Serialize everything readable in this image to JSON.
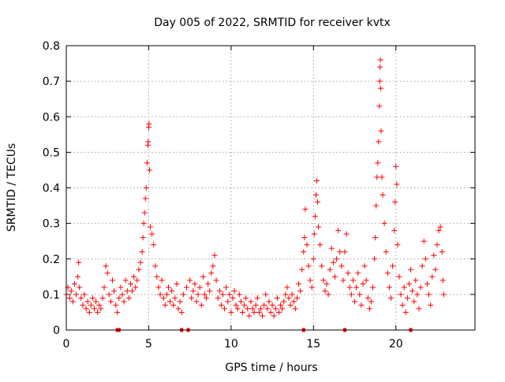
{
  "chart_data": {
    "type": "scatter",
    "title": "Day 005 of 2022, SRMTID for receiver kvtx",
    "xlabel": "GPS time / hours",
    "ylabel": "SRMTID / TECUs",
    "xlim": [
      0,
      24.8
    ],
    "ylim": [
      0,
      0.8
    ],
    "xticks": [
      0,
      5,
      10,
      15,
      20
    ],
    "xtick_labels": [
      "0",
      "5",
      "10",
      "15",
      "20"
    ],
    "yticks": [
      0,
      0.1,
      0.2,
      0.3,
      0.4,
      0.5,
      0.6,
      0.7,
      0.8
    ],
    "ytick_labels": [
      "0",
      "0.1",
      "0.2",
      "0.3",
      "0.4",
      "0.5",
      "0.6",
      "0.7",
      "0.8"
    ],
    "grid": true,
    "marker": "+",
    "color": "#ff0000",
    "series": [
      {
        "name": "SRMTID",
        "points": [
          [
            0.0,
            0.1
          ],
          [
            0.1,
            0.12
          ],
          [
            0.2,
            0.09
          ],
          [
            0.3,
            0.11
          ],
          [
            0.4,
            0.08
          ],
          [
            0.5,
            0.13
          ],
          [
            0.6,
            0.1
          ],
          [
            0.7,
            0.15
          ],
          [
            0.75,
            0.19
          ],
          [
            0.8,
            0.12
          ],
          [
            0.9,
            0.09
          ],
          [
            1.0,
            0.07
          ],
          [
            1.1,
            0.1
          ],
          [
            1.2,
            0.06
          ],
          [
            1.3,
            0.08
          ],
          [
            1.4,
            0.05
          ],
          [
            1.5,
            0.07
          ],
          [
            1.6,
            0.09
          ],
          [
            1.7,
            0.06
          ],
          [
            1.8,
            0.08
          ],
          [
            1.9,
            0.05
          ],
          [
            2.0,
            0.07
          ],
          [
            2.1,
            0.06
          ],
          [
            2.2,
            0.09
          ],
          [
            2.3,
            0.12
          ],
          [
            2.4,
            0.18
          ],
          [
            2.5,
            0.16
          ],
          [
            2.6,
            0.1
          ],
          [
            2.7,
            0.08
          ],
          [
            2.8,
            0.14
          ],
          [
            2.9,
            0.11
          ],
          [
            3.0,
            0.07
          ],
          [
            3.1,
            0.05
          ],
          [
            3.2,
            0.09
          ],
          [
            3.3,
            0.12
          ],
          [
            3.4,
            0.1
          ],
          [
            3.5,
            0.08
          ],
          [
            3.6,
            0.14
          ],
          [
            3.7,
            0.11
          ],
          [
            3.8,
            0.09
          ],
          [
            3.9,
            0.13
          ],
          [
            4.0,
            0.11
          ],
          [
            4.1,
            0.15
          ],
          [
            4.2,
            0.12
          ],
          [
            4.3,
            0.14
          ],
          [
            4.4,
            0.17
          ],
          [
            4.5,
            0.19
          ],
          [
            4.6,
            0.22
          ],
          [
            4.65,
            0.26
          ],
          [
            4.7,
            0.3
          ],
          [
            4.75,
            0.33
          ],
          [
            4.8,
            0.37
          ],
          [
            4.85,
            0.4
          ],
          [
            4.9,
            0.47
          ],
          [
            4.95,
            0.52
          ],
          [
            4.97,
            0.53
          ],
          [
            5.0,
            0.57
          ],
          [
            5.02,
            0.58
          ],
          [
            5.05,
            0.45
          ],
          [
            5.1,
            0.29
          ],
          [
            5.2,
            0.27
          ],
          [
            5.3,
            0.24
          ],
          [
            5.4,
            0.18
          ],
          [
            5.5,
            0.15
          ],
          [
            5.6,
            0.12
          ],
          [
            5.7,
            0.1
          ],
          [
            5.8,
            0.14
          ],
          [
            5.9,
            0.09
          ],
          [
            6.0,
            0.07
          ],
          [
            6.1,
            0.1
          ],
          [
            6.2,
            0.12
          ],
          [
            6.3,
            0.08
          ],
          [
            6.4,
            0.11
          ],
          [
            6.5,
            0.07
          ],
          [
            6.6,
            0.09
          ],
          [
            6.7,
            0.13
          ],
          [
            6.8,
            0.06
          ],
          [
            6.9,
            0.08
          ],
          [
            7.0,
            0.05
          ],
          [
            7.1,
            0.1
          ],
          [
            7.3,
            0.12
          ],
          [
            7.5,
            0.14
          ],
          [
            7.6,
            0.09
          ],
          [
            7.7,
            0.11
          ],
          [
            7.8,
            0.13
          ],
          [
            7.9,
            0.08
          ],
          [
            8.0,
            0.1
          ],
          [
            8.1,
            0.12
          ],
          [
            8.2,
            0.07
          ],
          [
            8.3,
            0.15
          ],
          [
            8.4,
            0.1
          ],
          [
            8.5,
            0.09
          ],
          [
            8.6,
            0.13
          ],
          [
            8.7,
            0.11
          ],
          [
            8.8,
            0.16
          ],
          [
            8.9,
            0.18
          ],
          [
            9.0,
            0.21
          ],
          [
            9.1,
            0.14
          ],
          [
            9.2,
            0.09
          ],
          [
            9.3,
            0.11
          ],
          [
            9.4,
            0.07
          ],
          [
            9.5,
            0.1
          ],
          [
            9.6,
            0.06
          ],
          [
            9.7,
            0.12
          ],
          [
            9.8,
            0.08
          ],
          [
            9.9,
            0.1
          ],
          [
            10.0,
            0.05
          ],
          [
            10.1,
            0.09
          ],
          [
            10.2,
            0.11
          ],
          [
            10.3,
            0.07
          ],
          [
            10.4,
            0.06
          ],
          [
            10.5,
            0.1
          ],
          [
            10.6,
            0.08
          ],
          [
            10.7,
            0.05
          ],
          [
            10.8,
            0.07
          ],
          [
            10.9,
            0.09
          ],
          [
            11.0,
            0.06
          ],
          [
            11.1,
            0.04
          ],
          [
            11.2,
            0.08
          ],
          [
            11.3,
            0.06
          ],
          [
            11.4,
            0.05
          ],
          [
            11.5,
            0.07
          ],
          [
            11.6,
            0.09
          ],
          [
            11.7,
            0.05
          ],
          [
            11.8,
            0.06
          ],
          [
            11.9,
            0.04
          ],
          [
            12.0,
            0.07
          ],
          [
            12.1,
            0.1
          ],
          [
            12.2,
            0.06
          ],
          [
            12.3,
            0.08
          ],
          [
            12.4,
            0.05
          ],
          [
            12.5,
            0.07
          ],
          [
            12.6,
            0.04
          ],
          [
            12.7,
            0.06
          ],
          [
            12.8,
            0.09
          ],
          [
            12.9,
            0.05
          ],
          [
            13.0,
            0.07
          ],
          [
            13.1,
            0.06
          ],
          [
            13.2,
            0.08
          ],
          [
            13.3,
            0.1
          ],
          [
            13.4,
            0.12
          ],
          [
            13.5,
            0.09
          ],
          [
            13.6,
            0.07
          ],
          [
            13.7,
            0.1
          ],
          [
            13.8,
            0.08
          ],
          [
            13.9,
            0.06
          ],
          [
            14.0,
            0.09
          ],
          [
            14.1,
            0.13
          ],
          [
            14.2,
            0.11
          ],
          [
            14.3,
            0.17
          ],
          [
            14.4,
            0.22
          ],
          [
            14.45,
            0.26
          ],
          [
            14.5,
            0.34
          ],
          [
            14.6,
            0.24
          ],
          [
            14.7,
            0.18
          ],
          [
            14.8,
            0.14
          ],
          [
            14.9,
            0.12
          ],
          [
            15.0,
            0.2
          ],
          [
            15.05,
            0.27
          ],
          [
            15.1,
            0.32
          ],
          [
            15.15,
            0.38
          ],
          [
            15.2,
            0.42
          ],
          [
            15.25,
            0.36
          ],
          [
            15.3,
            0.29
          ],
          [
            15.4,
            0.24
          ],
          [
            15.5,
            0.18
          ],
          [
            15.6,
            0.14
          ],
          [
            15.7,
            0.11
          ],
          [
            15.8,
            0.13
          ],
          [
            15.9,
            0.1
          ],
          [
            16.0,
            0.17
          ],
          [
            16.1,
            0.23
          ],
          [
            16.2,
            0.19
          ],
          [
            16.3,
            0.15
          ],
          [
            16.4,
            0.2
          ],
          [
            16.5,
            0.28
          ],
          [
            16.6,
            0.22
          ],
          [
            16.7,
            0.18
          ],
          [
            16.8,
            0.14
          ],
          [
            16.9,
            0.22
          ],
          [
            17.0,
            0.27
          ],
          [
            17.1,
            0.16
          ],
          [
            17.2,
            0.12
          ],
          [
            17.3,
            0.1
          ],
          [
            17.4,
            0.14
          ],
          [
            17.5,
            0.08
          ],
          [
            17.6,
            0.12
          ],
          [
            17.7,
            0.16
          ],
          [
            17.8,
            0.1
          ],
          [
            17.9,
            0.07
          ],
          [
            18.0,
            0.13
          ],
          [
            18.1,
            0.18
          ],
          [
            18.2,
            0.14
          ],
          [
            18.3,
            0.09
          ],
          [
            18.4,
            0.06
          ],
          [
            18.5,
            0.08
          ],
          [
            18.6,
            0.12
          ],
          [
            18.7,
            0.2
          ],
          [
            18.75,
            0.26
          ],
          [
            18.8,
            0.35
          ],
          [
            18.85,
            0.43
          ],
          [
            18.9,
            0.47
          ],
          [
            18.95,
            0.53
          ],
          [
            19.0,
            0.63
          ],
          [
            19.02,
            0.7
          ],
          [
            19.04,
            0.74
          ],
          [
            19.06,
            0.76
          ],
          [
            19.08,
            0.68
          ],
          [
            19.1,
            0.56
          ],
          [
            19.15,
            0.43
          ],
          [
            19.2,
            0.38
          ],
          [
            19.3,
            0.3
          ],
          [
            19.4,
            0.22
          ],
          [
            19.5,
            0.16
          ],
          [
            19.6,
            0.12
          ],
          [
            19.7,
            0.09
          ],
          [
            19.8,
            0.18
          ],
          [
            19.9,
            0.28
          ],
          [
            19.95,
            0.36
          ],
          [
            20.0,
            0.46
          ],
          [
            20.05,
            0.41
          ],
          [
            20.1,
            0.24
          ],
          [
            20.2,
            0.15
          ],
          [
            20.3,
            0.1
          ],
          [
            20.4,
            0.07
          ],
          [
            20.5,
            0.12
          ],
          [
            20.6,
            0.05
          ],
          [
            20.7,
            0.09
          ],
          [
            20.8,
            0.13
          ],
          [
            20.9,
            0.17
          ],
          [
            21.0,
            0.11
          ],
          [
            21.1,
            0.08
          ],
          [
            21.2,
            0.14
          ],
          [
            21.3,
            0.1
          ],
          [
            21.4,
            0.06
          ],
          [
            21.5,
            0.12
          ],
          [
            21.6,
            0.18
          ],
          [
            21.7,
            0.25
          ],
          [
            21.8,
            0.2
          ],
          [
            21.9,
            0.13
          ],
          [
            22.0,
            0.1
          ],
          [
            22.1,
            0.07
          ],
          [
            22.2,
            0.15
          ],
          [
            22.3,
            0.21
          ],
          [
            22.4,
            0.17
          ],
          [
            22.5,
            0.24
          ],
          [
            22.6,
            0.28
          ],
          [
            22.7,
            0.29
          ],
          [
            22.8,
            0.22
          ],
          [
            22.85,
            0.14
          ],
          [
            22.9,
            0.1
          ]
        ]
      }
    ],
    "zero_markers_x": [
      3.1,
      3.2,
      7.0,
      7.4,
      14.4,
      16.9,
      20.9
    ]
  }
}
